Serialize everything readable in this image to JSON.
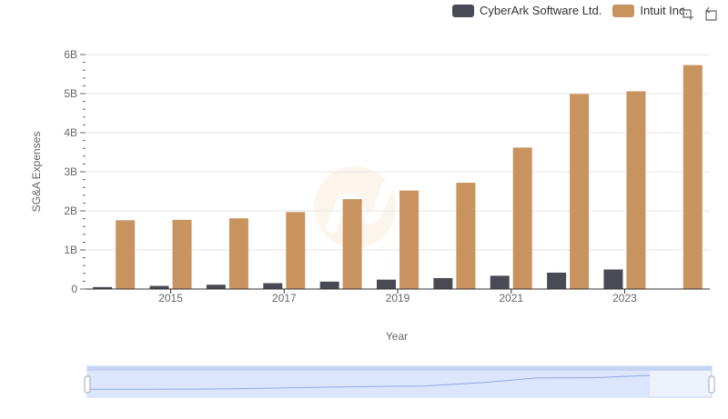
{
  "colors": {
    "series_0": "#4a4a55",
    "series_1": "#c9935f",
    "grid": "#e6e6e6",
    "axis": "#666666",
    "slider_fill": "#dbe5fb",
    "slider_border": "#c6d3f3",
    "slider_line": "#8fa9e8"
  },
  "toolbar": {
    "zoom_icon": "zoom-icon",
    "restore_icon": "restore-icon"
  },
  "chart_data": {
    "type": "bar",
    "title": "",
    "xlabel": "Year",
    "ylabel": "SG&A Expenses",
    "ylim": [
      0,
      6000000000
    ],
    "y_ticks": [
      {
        "value": 0,
        "label": "0"
      },
      {
        "value": 1000000000,
        "label": "1B"
      },
      {
        "value": 2000000000,
        "label": "2B"
      },
      {
        "value": 3000000000,
        "label": "3B"
      },
      {
        "value": 4000000000,
        "label": "4B"
      },
      {
        "value": 5000000000,
        "label": "5B"
      },
      {
        "value": 6000000000,
        "label": "6B"
      }
    ],
    "categories": [
      "2014",
      "2015",
      "2016",
      "2017",
      "2018",
      "2019",
      "2020",
      "2021",
      "2022",
      "2023",
      "2024"
    ],
    "x_tick_labels": [
      "",
      "2015",
      "",
      "2017",
      "",
      "2019",
      "",
      "2021",
      "",
      "2023",
      ""
    ],
    "series": [
      {
        "name": "CyberArk Software Ltd.",
        "values": [
          50000000,
          80000000,
          110000000,
          150000000,
          190000000,
          240000000,
          280000000,
          340000000,
          420000000,
          500000000,
          null
        ]
      },
      {
        "name": "Intuit Inc.",
        "values": [
          1760000000,
          1770000000,
          1810000000,
          1970000000,
          2300000000,
          2520000000,
          2720000000,
          3620000000,
          4990000000,
          5060000000,
          5730000000
        ]
      }
    ],
    "legend_position": "top-right"
  }
}
